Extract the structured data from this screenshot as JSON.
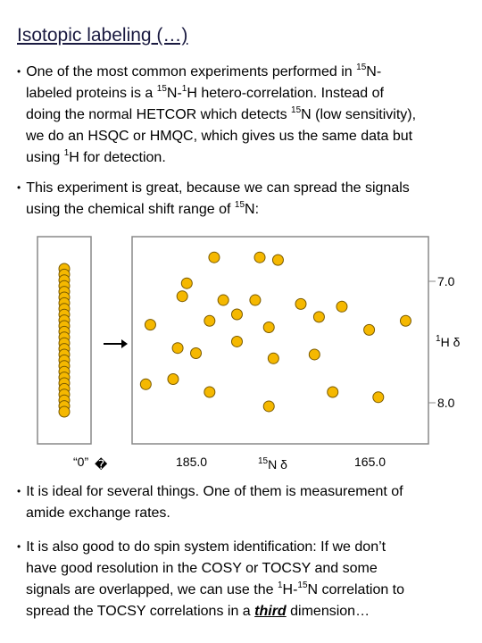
{
  "title": "Isotopic labeling (…)",
  "bullets": [
    {
      "lines": [
        [
          "One of the most common experiments performed in ",
          "15",
          "N-"
        ],
        [
          "labeled proteins is a ",
          "15",
          "N-",
          "1",
          "H hetero-correlation. Instead of"
        ],
        [
          "doing the normal HETCOR which detects ",
          "15",
          "N (low sensitivity),"
        ],
        [
          "we do an HSQC or HMQC, which gives us the same data but"
        ],
        [
          "using ",
          "1",
          "H for detection."
        ]
      ]
    },
    {
      "lines": [
        [
          "This experiment is great, because we can spread the signals"
        ],
        [
          "using the chemical shift range of ",
          "15",
          "N:"
        ]
      ]
    },
    {
      "lines": [
        [
          "It is ideal for several things. One of them is measurement of"
        ],
        [
          "amide exchange rates."
        ]
      ]
    },
    {
      "lines": [
        [
          "It is also good to do spin system identification: If we don’t"
        ],
        [
          "have good resolution in the COSY or TOCSY and some"
        ],
        [
          "signals are overlapped, we can use the ",
          "1",
          "H-",
          "15",
          "N correlation to"
        ],
        [
          "spread the TOCSY correlations in a ",
          "third",
          " dimension…"
        ]
      ]
    }
  ],
  "left_panel": {
    "label": "“0”",
    "box_glyph": "�",
    "peak_count": 26
  },
  "chart_data": {
    "type": "scatter",
    "x_axis": {
      "label_prefix": "15",
      "label": "N δ",
      "ticks": [
        "185.0",
        "165.0"
      ],
      "xlim": [
        190.5,
        158.0
      ]
    },
    "y_axis": {
      "label_prefix": "1",
      "label": "H δ",
      "ticks": [
        "7.0",
        "8.0"
      ],
      "ylim": [
        6.7,
        8.3
      ]
    },
    "colors": {
      "peak_fill": "#f5b800",
      "peak_stroke": "#7a5a00",
      "frame": "#888888"
    },
    "points": [
      {
        "x": 181.5,
        "y": 6.86
      },
      {
        "x": 176.5,
        "y": 6.86
      },
      {
        "x": 174.5,
        "y": 6.88
      },
      {
        "x": 184.5,
        "y": 7.06
      },
      {
        "x": 185.0,
        "y": 7.16
      },
      {
        "x": 180.5,
        "y": 7.19
      },
      {
        "x": 177.0,
        "y": 7.19
      },
      {
        "x": 172.0,
        "y": 7.22
      },
      {
        "x": 167.5,
        "y": 7.24
      },
      {
        "x": 182.0,
        "y": 7.35
      },
      {
        "x": 188.5,
        "y": 7.38
      },
      {
        "x": 179.0,
        "y": 7.3
      },
      {
        "x": 175.5,
        "y": 7.4
      },
      {
        "x": 170.0,
        "y": 7.32
      },
      {
        "x": 164.5,
        "y": 7.42
      },
      {
        "x": 160.5,
        "y": 7.35
      },
      {
        "x": 185.5,
        "y": 7.56
      },
      {
        "x": 183.5,
        "y": 7.6
      },
      {
        "x": 179.0,
        "y": 7.51
      },
      {
        "x": 175.0,
        "y": 7.64
      },
      {
        "x": 170.5,
        "y": 7.61
      },
      {
        "x": 189.0,
        "y": 7.84
      },
      {
        "x": 186.0,
        "y": 7.8
      },
      {
        "x": 182.0,
        "y": 7.9
      },
      {
        "x": 168.5,
        "y": 7.9
      },
      {
        "x": 175.5,
        "y": 8.01
      },
      {
        "x": 163.5,
        "y": 7.94
      }
    ]
  }
}
